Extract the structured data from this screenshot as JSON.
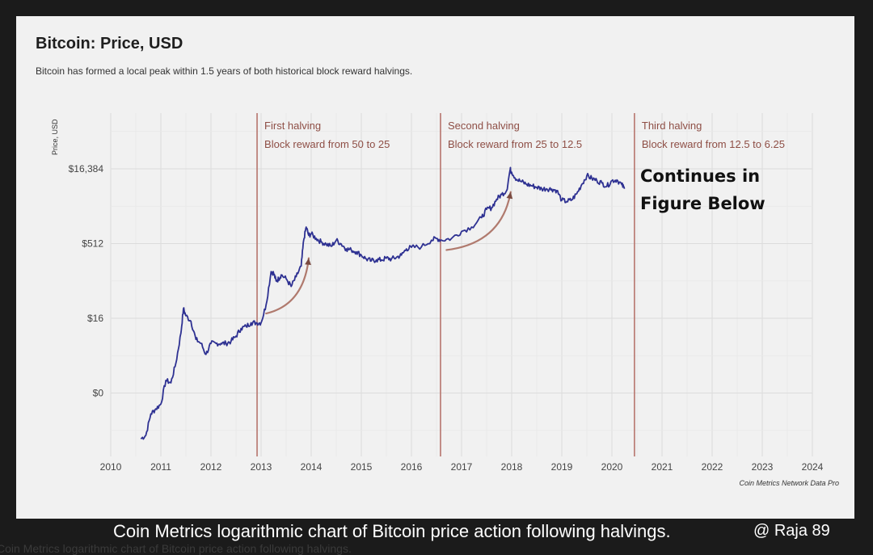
{
  "chart_data": {
    "type": "line",
    "title": "Bitcoin: Price, USD",
    "subtitle": "Bitcoin has formed a local peak within 1.5 years of both historical block reward halvings.",
    "ylabel": "Price, USD",
    "xlabel": "",
    "scale": "log2",
    "xlim": [
      2010,
      2024
    ],
    "x_ticks": [
      "2010",
      "2011",
      "2012",
      "2013",
      "2014",
      "2015",
      "2016",
      "2017",
      "2018",
      "2019",
      "2020",
      "2021",
      "2022",
      "2023",
      "2024"
    ],
    "y_ticks": [
      {
        "label": "$16,384",
        "value": 16384
      },
      {
        "label": "$512",
        "value": 512
      },
      {
        "label": "$16",
        "value": 16
      },
      {
        "label": "$0",
        "value": 0.5
      }
    ],
    "grid": true,
    "series": [
      {
        "name": "Bitcoin price",
        "color": "#2e3192",
        "x": [
          2010.6,
          2010.7,
          2010.8,
          2010.9,
          2011.0,
          2011.1,
          2011.2,
          2011.3,
          2011.4,
          2011.45,
          2011.5,
          2011.6,
          2011.7,
          2011.8,
          2011.9,
          2012.0,
          2012.1,
          2012.2,
          2012.3,
          2012.4,
          2012.5,
          2012.6,
          2012.7,
          2012.8,
          2012.9,
          2013.0,
          2013.1,
          2013.2,
          2013.25,
          2013.3,
          2013.35,
          2013.4,
          2013.5,
          2013.6,
          2013.7,
          2013.8,
          2013.85,
          2013.9,
          2013.95,
          2014.0,
          2014.1,
          2014.2,
          2014.3,
          2014.4,
          2014.5,
          2014.6,
          2014.7,
          2014.8,
          2014.9,
          2015.0,
          2015.1,
          2015.2,
          2015.3,
          2015.4,
          2015.5,
          2015.6,
          2015.7,
          2015.8,
          2015.9,
          2016.0,
          2016.2,
          2016.4,
          2016.5,
          2016.6,
          2016.8,
          2017.0,
          2017.2,
          2017.4,
          2017.5,
          2017.6,
          2017.7,
          2017.8,
          2017.9,
          2017.97,
          2018.0,
          2018.1,
          2018.2,
          2018.3,
          2018.4,
          2018.5,
          2018.6,
          2018.7,
          2018.8,
          2018.9,
          2019.0,
          2019.1,
          2019.2,
          2019.3,
          2019.4,
          2019.5,
          2019.6,
          2019.7,
          2019.8,
          2019.9,
          2020.0,
          2020.1,
          2020.2,
          2020.25
        ],
        "y": [
          0.06,
          0.07,
          0.19,
          0.24,
          0.3,
          0.9,
          0.8,
          2,
          8,
          25,
          18,
          14,
          6,
          5,
          3,
          5,
          5,
          5,
          5,
          5.5,
          7,
          10,
          11,
          13,
          13,
          13,
          30,
          140,
          130,
          90,
          100,
          120,
          100,
          70,
          110,
          180,
          600,
          1100,
          750,
          800,
          650,
          550,
          500,
          450,
          600,
          500,
          400,
          380,
          350,
          300,
          250,
          230,
          240,
          240,
          260,
          250,
          270,
          300,
          400,
          430,
          440,
          600,
          650,
          600,
          650,
          900,
          1100,
          1700,
          2500,
          2700,
          4000,
          5000,
          6000,
          16000,
          14000,
          10000,
          9000,
          8000,
          7500,
          7000,
          6500,
          6500,
          6400,
          6000,
          3800,
          3600,
          3900,
          5200,
          8000,
          12000,
          10500,
          9500,
          8500,
          7300,
          9500,
          9800,
          7800,
          6500
        ]
      }
    ],
    "halvings": [
      {
        "x": 2012.92,
        "label": "First halving",
        "detail": "Block reward from 50 to 25"
      },
      {
        "x": 2016.58,
        "label": "Second halving",
        "detail": "Block reward from 25 to 12.5"
      },
      {
        "x": 2020.45,
        "label": "Third halving",
        "detail": "Block reward from 12.5 to 6.25"
      }
    ],
    "accent_color": "#b6756d",
    "arrow_color": "#b07a6e"
  },
  "annotation": {
    "line1": "Continues in",
    "line2": "Figure Below"
  },
  "source": "Coin Metrics Network Data Pro",
  "caption": "Coin Metrics logarithmic chart of Bitcoin price action following halvings.",
  "watermark": "@ Raja 89",
  "ghost_caption": "Coin Metrics logarithmic chart of Bitcoin price action following halvings."
}
